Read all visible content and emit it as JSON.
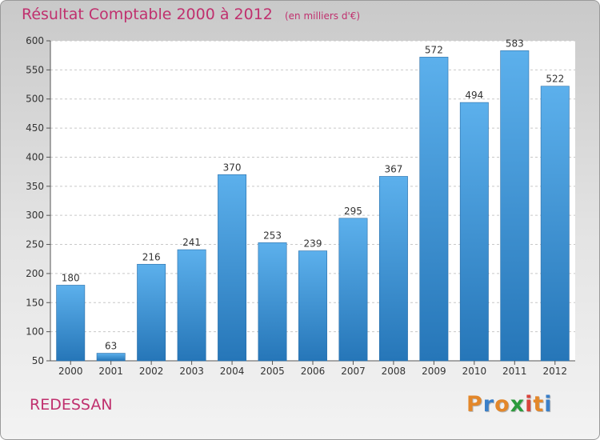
{
  "chart_data": {
    "type": "bar",
    "title": "Résultat Comptable 2000 à 2012",
    "subtitle": "(en milliers d'€)",
    "categories": [
      "2000",
      "2001",
      "2002",
      "2003",
      "2004",
      "2005",
      "2006",
      "2007",
      "2008",
      "2009",
      "2010",
      "2011",
      "2012"
    ],
    "values": [
      180,
      63,
      216,
      241,
      370,
      253,
      239,
      295,
      367,
      572,
      494,
      583,
      522
    ],
    "ylim": [
      50,
      600
    ],
    "yticks": [
      50,
      100,
      150,
      200,
      250,
      300,
      350,
      400,
      450,
      500,
      550,
      600
    ],
    "grid": true,
    "bar_color": "#3b95d8"
  },
  "place": "REDESSAN",
  "brand": {
    "letters": [
      "P",
      "r",
      "o",
      "x",
      "i",
      "t",
      "i"
    ],
    "colors": [
      "#e3872a",
      "#3a7fc8",
      "#e3872a",
      "#2b9b3c",
      "#d8443c",
      "#e3872a",
      "#3a7fc8"
    ]
  }
}
